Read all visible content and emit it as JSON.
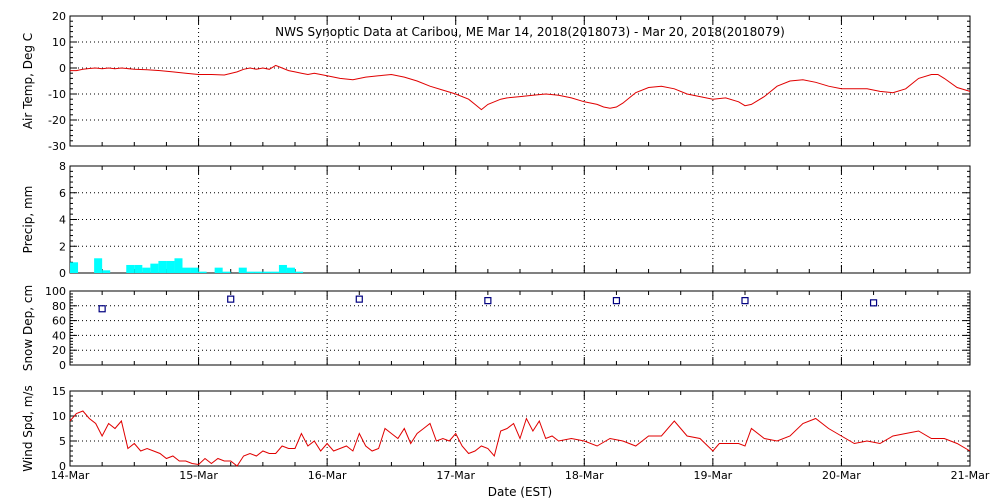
{
  "title": "NWS Synoptic Data at Caribou, ME   Mar 14, 2018(2018073) - Mar 20, 2018(2018079)",
  "xlabel": "Date (EST)",
  "colors": {
    "line": "#e00000",
    "precip": "#00ffff",
    "snow": "#000080",
    "axes": "#000000"
  },
  "chart_data": [
    {
      "type": "line",
      "ylabel": "Air Temp, Deg C",
      "ylim": [
        -30,
        20
      ],
      "yticks": [
        "20",
        "10",
        "0",
        "-10",
        "-20",
        "-30"
      ],
      "xlim": [
        0,
        7
      ],
      "xticks": [
        "14-Mar",
        "15-Mar",
        "16-Mar",
        "17-Mar",
        "18-Mar",
        "19-Mar",
        "20-Mar",
        "21-Mar"
      ],
      "grid": true,
      "series": [
        {
          "x": [
            0,
            0.05,
            0.1,
            0.15,
            0.2,
            0.25,
            0.3,
            0.35,
            0.4,
            0.5,
            0.6,
            0.7,
            0.8,
            0.9,
            1.0,
            1.1,
            1.2,
            1.3,
            1.35,
            1.4,
            1.45,
            1.5,
            1.55,
            1.6,
            1.65,
            1.7,
            1.75,
            1.8,
            1.85,
            1.9,
            2.0,
            2.1,
            2.2,
            2.3,
            2.4,
            2.5,
            2.6,
            2.7,
            2.8,
            2.9,
            3.0,
            3.1,
            3.15,
            3.2,
            3.25,
            3.3,
            3.35,
            3.4,
            3.5,
            3.6,
            3.7,
            3.8,
            3.9,
            4.0,
            4.1,
            4.15,
            4.2,
            4.25,
            4.3,
            4.35,
            4.4,
            4.5,
            4.6,
            4.7,
            4.8,
            4.9,
            5.0,
            5.1,
            5.2,
            5.25,
            5.3,
            5.4,
            5.5,
            5.6,
            5.7,
            5.8,
            5.9,
            6.0,
            6.1,
            6.2,
            6.3,
            6.4,
            6.5,
            6.6,
            6.7,
            6.75,
            6.8,
            6.9,
            7.0
          ],
          "y": [
            -1,
            -1,
            -0.5,
            -0.2,
            0,
            -0.3,
            0,
            -0.3,
            0,
            -0.5,
            -0.7,
            -1,
            -1.5,
            -2,
            -2.5,
            -2.5,
            -2.7,
            -1.5,
            -0.5,
            0,
            -0.5,
            0,
            -0.5,
            1,
            0,
            -1,
            -1.5,
            -2,
            -2.5,
            -2,
            -3,
            -4,
            -4.5,
            -3.5,
            -3,
            -2.5,
            -3.5,
            -5,
            -7,
            -8.5,
            -10,
            -12,
            -14,
            -16,
            -14,
            -13,
            -12,
            -11.5,
            -11,
            -10.5,
            -10,
            -10.5,
            -11.5,
            -13,
            -14,
            -15,
            -15.5,
            -15,
            -13.5,
            -11.5,
            -9.5,
            -7.5,
            -7,
            -8,
            -10,
            -11,
            -12,
            -11.5,
            -13,
            -14.5,
            -14,
            -11,
            -7,
            -5,
            -4.5,
            -5.5,
            -7,
            -8,
            -8,
            -8,
            -9,
            -9.5,
            -8,
            -4,
            -2.5,
            -2.5,
            -4,
            -7.5,
            -9
          ]
        }
      ]
    },
    {
      "type": "bar",
      "ylabel": "Precip, mm",
      "ylim": [
        0,
        8
      ],
      "yticks": [
        "8",
        "6",
        "4",
        "2",
        "0"
      ],
      "grid": true,
      "x": [
        0.0,
        0.0625,
        0.125,
        0.1875,
        0.25,
        0.3125,
        0.375,
        0.4375,
        0.5,
        0.5625,
        0.625,
        0.6875,
        0.75,
        0.8125,
        0.875,
        0.9375,
        1.0,
        1.0625,
        1.125,
        1.1875,
        1.25,
        1.3125,
        1.375,
        1.4375,
        1.5,
        1.5625,
        1.625,
        1.6875,
        1.75
      ],
      "values": [
        0.8,
        0,
        0,
        1.1,
        0.2,
        0,
        0,
        0.6,
        0.6,
        0.4,
        0.7,
        0.9,
        0.9,
        1.1,
        0.4,
        0.4,
        0.1,
        0,
        0.4,
        0.1,
        0,
        0.4,
        0.1,
        0.1,
        0.1,
        0.1,
        0.6,
        0.4,
        0.1
      ]
    },
    {
      "type": "scatter",
      "ylabel": "Snow Dep, cm",
      "ylim": [
        0,
        100
      ],
      "yticks": [
        "100",
        "80",
        "60",
        "40",
        "20",
        "0"
      ],
      "grid": true,
      "x": [
        0.25,
        1.25,
        2.25,
        3.25,
        4.25,
        5.25,
        6.25
      ],
      "y": [
        76,
        89,
        89,
        87,
        87,
        87,
        84
      ]
    },
    {
      "type": "line",
      "ylabel": "Wind Spd, m/s",
      "ylim": [
        0,
        15
      ],
      "yticks": [
        "15",
        "10",
        "5",
        "0"
      ],
      "grid": true,
      "series": [
        {
          "x": [
            0,
            0.05,
            0.1,
            0.15,
            0.2,
            0.25,
            0.3,
            0.35,
            0.4,
            0.45,
            0.5,
            0.55,
            0.6,
            0.65,
            0.7,
            0.75,
            0.8,
            0.85,
            0.9,
            0.95,
            1.0,
            1.05,
            1.1,
            1.15,
            1.2,
            1.25,
            1.3,
            1.35,
            1.4,
            1.45,
            1.5,
            1.55,
            1.6,
            1.65,
            1.7,
            1.75,
            1.8,
            1.85,
            1.9,
            1.95,
            2.0,
            2.05,
            2.1,
            2.15,
            2.2,
            2.25,
            2.3,
            2.35,
            2.4,
            2.45,
            2.5,
            2.55,
            2.6,
            2.65,
            2.7,
            2.75,
            2.8,
            2.85,
            2.9,
            2.95,
            3.0,
            3.05,
            3.1,
            3.15,
            3.2,
            3.25,
            3.3,
            3.35,
            3.4,
            3.45,
            3.5,
            3.55,
            3.6,
            3.65,
            3.7,
            3.75,
            3.8,
            3.9,
            4.0,
            4.1,
            4.2,
            4.3,
            4.4,
            4.5,
            4.6,
            4.7,
            4.75,
            4.8,
            4.9,
            5.0,
            5.05,
            5.1,
            5.2,
            5.25,
            5.3,
            5.4,
            5.5,
            5.6,
            5.7,
            5.8,
            5.9,
            6.0,
            6.1,
            6.2,
            6.3,
            6.4,
            6.5,
            6.6,
            6.7,
            6.8,
            6.9,
            7.0
          ],
          "y": [
            9,
            10.5,
            11,
            9.5,
            8.5,
            6,
            8.5,
            7.5,
            9,
            3.5,
            4.5,
            3,
            3.5,
            3,
            2.5,
            1.5,
            2,
            1,
            1,
            0.5,
            0.3,
            1.5,
            0.5,
            1.5,
            1,
            1,
            0,
            2,
            2.5,
            2,
            3,
            2.5,
            2.5,
            4,
            3.5,
            3.5,
            6.5,
            4,
            5,
            3,
            4.5,
            3,
            3.5,
            4,
            3,
            6.5,
            4,
            3,
            3.5,
            7.5,
            6.5,
            5.5,
            7.5,
            4.5,
            6.5,
            7.5,
            8.5,
            5,
            5.5,
            5,
            6.5,
            4,
            2.5,
            3,
            4,
            3.5,
            2,
            7,
            7.5,
            8.5,
            5.5,
            9.5,
            7,
            9,
            5.5,
            6,
            5,
            5.5,
            5,
            4,
            5.5,
            5,
            4,
            6,
            6,
            9,
            7.5,
            6,
            5.5,
            3,
            4.5,
            4.5,
            4.5,
            4,
            7.5,
            5.5,
            5,
            6,
            8.5,
            9.5,
            7.5,
            6,
            4.5,
            5,
            4.5,
            6,
            6.5,
            7,
            5.5,
            5.5,
            4.5,
            3
          ]
        }
      ]
    }
  ]
}
